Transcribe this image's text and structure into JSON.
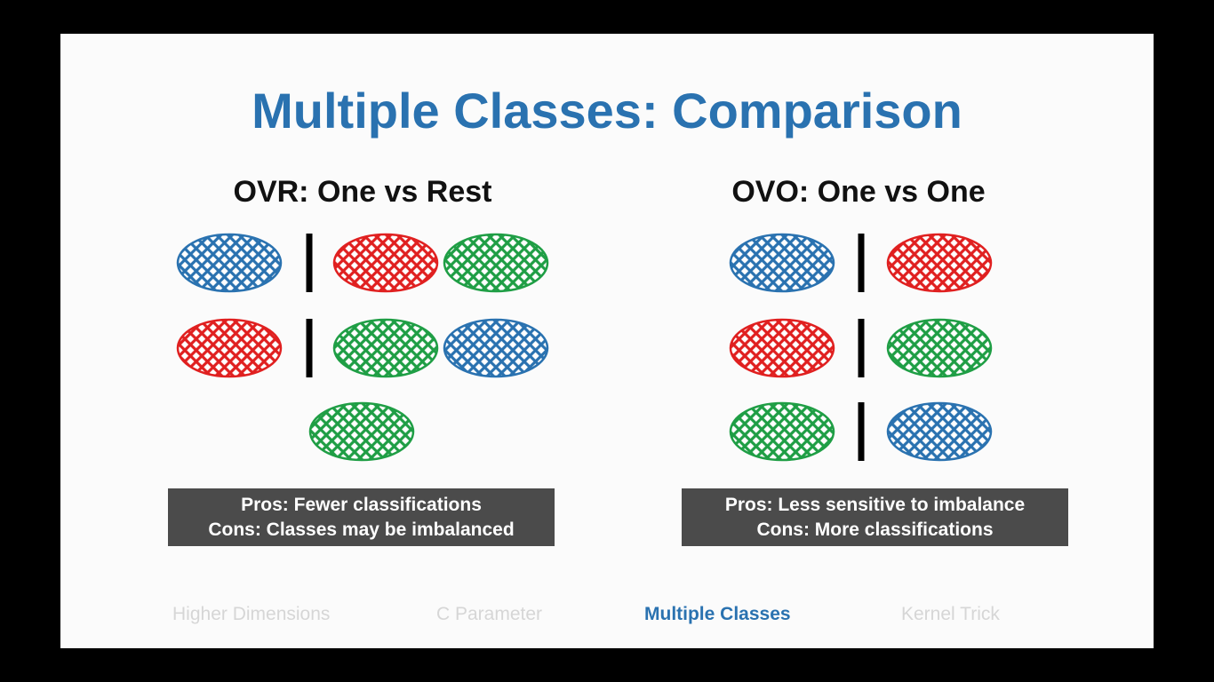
{
  "title": "Multiple Classes: Comparison",
  "colors": {
    "title": "#2a72b0",
    "blue": "#2a72b0",
    "red": "#e02020",
    "green": "#1f9e45",
    "box_bg": "#4b4b4b",
    "nav_inactive": "#d6d6d6",
    "nav_active": "#2a72b0"
  },
  "ovr": {
    "title": "OVR: One vs Rest",
    "rows": [
      {
        "left": [
          "blue"
        ],
        "right": [
          "red",
          "green"
        ]
      },
      {
        "left": [
          "red"
        ],
        "right": [
          "green",
          "blue"
        ]
      }
    ],
    "extra": [
      "green"
    ],
    "pros": "Pros: Fewer classifications",
    "cons": "Cons: Classes may be imbalanced"
  },
  "ovo": {
    "title": "OVO: One vs One",
    "rows": [
      {
        "left": [
          "blue"
        ],
        "right": [
          "red"
        ]
      },
      {
        "left": [
          "red"
        ],
        "right": [
          "green"
        ]
      },
      {
        "left": [
          "green"
        ],
        "right": [
          "blue"
        ]
      }
    ],
    "pros": "Pros: Less sensitive to imbalance",
    "cons": "Cons: More classifications"
  },
  "nav": [
    {
      "label": "Higher Dimensions",
      "active": false
    },
    {
      "label": "C Parameter",
      "active": false
    },
    {
      "label": "Multiple Classes",
      "active": true
    },
    {
      "label": "Kernel Trick",
      "active": false
    }
  ]
}
